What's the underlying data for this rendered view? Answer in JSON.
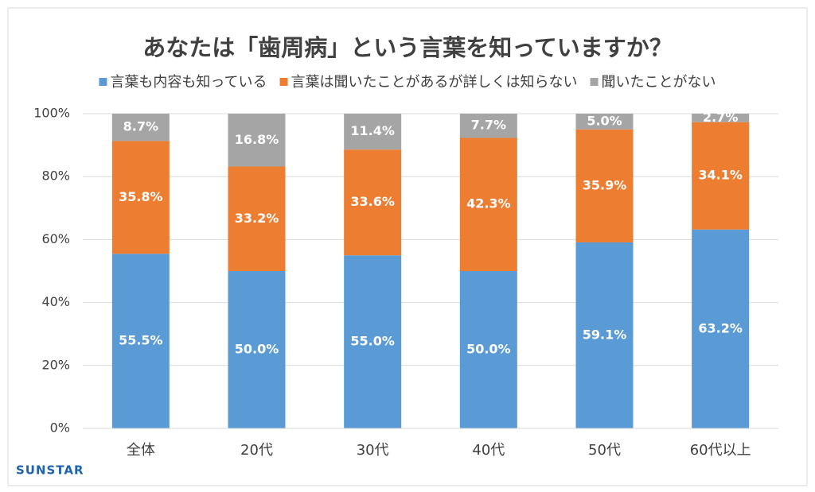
{
  "chart_data": {
    "type": "stacked_bar",
    "title": "あなたは「歯周病」という言葉を知っていますか？",
    "categories": [
      "全体",
      "20代",
      "30代",
      "40代",
      "50代",
      "60代以上"
    ],
    "series": [
      {
        "name": "言葉も内容も知っている",
        "color": "#5b9bd5",
        "values": [
          55.5,
          50.0,
          55.0,
          50.0,
          59.1,
          63.2
        ],
        "value_labels": [
          "55.5%",
          "50.0%",
          "55.0%",
          "50.0%",
          "59.1%",
          "63.2%"
        ]
      },
      {
        "name": "言葉は聞いたことがあるが詳しくは知らない",
        "color": "#ed7d31",
        "values": [
          35.8,
          33.2,
          33.6,
          42.3,
          35.9,
          34.1
        ],
        "value_labels": [
          "35.8%",
          "33.2%",
          "33.6%",
          "42.3%",
          "35.9%",
          "34.1%"
        ]
      },
      {
        "name": "聞いたことがない",
        "color": "#a5a5a5",
        "values": [
          8.7,
          16.8,
          11.4,
          7.7,
          5.0,
          2.7
        ],
        "value_labels": [
          "8.7%",
          "16.8%",
          "11.4%",
          "7.7%",
          "5.0%",
          "2.7%"
        ]
      }
    ],
    "ylim": [
      0,
      100
    ],
    "yticks": [
      {
        "value": 0,
        "label": "0%"
      },
      {
        "value": 20,
        "label": "20%"
      },
      {
        "value": 40,
        "label": "40%"
      },
      {
        "value": 60,
        "label": "60%"
      },
      {
        "value": 80,
        "label": "80%"
      },
      {
        "value": 100,
        "label": "100%"
      }
    ],
    "grid": true,
    "legend": "top",
    "logo": "SUNSTAR"
  }
}
